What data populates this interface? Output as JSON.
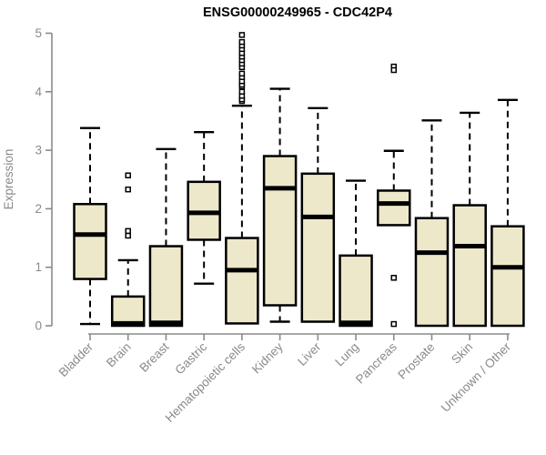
{
  "chart_data": {
    "type": "boxplot",
    "title": "ENSG00000249965 - CDC42P4",
    "xlabel": "",
    "ylabel": "Expression",
    "ylim": [
      0,
      5
    ],
    "yticks": [
      0,
      1,
      2,
      3,
      4,
      5
    ],
    "grid": false,
    "legend": "none",
    "categories": [
      "Bladder",
      "Brain",
      "Breast",
      "Gastric",
      "Hematopoietic cells",
      "Kidney",
      "Liver",
      "Lung",
      "Pancreas",
      "Prostate",
      "Skin",
      "Unknown / Other"
    ],
    "series": [
      {
        "category": "Bladder",
        "min": 0.03,
        "q1": 0.8,
        "median": 1.56,
        "q3": 2.08,
        "max": 3.38,
        "outliers": []
      },
      {
        "category": "Brain",
        "min": 0.0,
        "q1": 0.0,
        "median": 0.04,
        "q3": 0.5,
        "max": 1.12,
        "outliers": [
          1.54,
          1.62,
          2.33,
          2.57
        ]
      },
      {
        "category": "Breast",
        "min": 0.0,
        "q1": 0.0,
        "median": 0.05,
        "q3": 1.36,
        "max": 3.02,
        "outliers": []
      },
      {
        "category": "Gastric",
        "min": 0.72,
        "q1": 1.47,
        "median": 1.93,
        "q3": 2.46,
        "max": 3.31,
        "outliers": []
      },
      {
        "category": "Hematopoietic cells",
        "min": 0.04,
        "q1": 0.04,
        "median": 0.95,
        "q3": 1.5,
        "max": 3.76,
        "outliers": [
          3.84,
          3.87,
          3.93,
          4.0,
          4.09,
          4.12,
          4.18,
          4.25,
          4.31,
          4.42,
          4.48,
          4.54,
          4.6,
          4.66,
          4.73,
          4.79,
          4.85,
          4.97
        ]
      },
      {
        "category": "Kidney",
        "min": 0.07,
        "q1": 0.35,
        "median": 2.35,
        "q3": 2.9,
        "max": 4.05,
        "outliers": []
      },
      {
        "category": "Liver",
        "min": 0.07,
        "q1": 0.07,
        "median": 1.86,
        "q3": 2.6,
        "max": 3.72,
        "outliers": []
      },
      {
        "category": "Lung",
        "min": 0.0,
        "q1": 0.0,
        "median": 0.05,
        "q3": 1.2,
        "max": 2.48,
        "outliers": []
      },
      {
        "category": "Pancreas",
        "min": 1.72,
        "q1": 1.72,
        "median": 2.09,
        "q3": 2.31,
        "max": 2.99,
        "outliers": [
          4.43,
          4.37,
          0.82,
          0.03
        ]
      },
      {
        "category": "Prostate",
        "min": 0.0,
        "q1": 0.0,
        "median": 1.25,
        "q3": 1.84,
        "max": 3.51,
        "outliers": []
      },
      {
        "category": "Skin",
        "min": 0.0,
        "q1": 0.0,
        "median": 1.36,
        "q3": 2.06,
        "max": 3.64,
        "outliers": []
      },
      {
        "category": "Unknown / Other",
        "min": 0.0,
        "q1": 0.0,
        "median": 1.0,
        "q3": 1.7,
        "max": 3.86,
        "outliers": []
      }
    ]
  },
  "colors": {
    "background": "#FFFFFF",
    "box_fill": "#EDE8CA",
    "box_stroke": "#000000",
    "median": "#000000",
    "whisker": "#000000",
    "outlier_stroke": "#000000",
    "axis": "#8A8A8A",
    "tick_label": "#8A8A8A",
    "title": "#000000"
  }
}
